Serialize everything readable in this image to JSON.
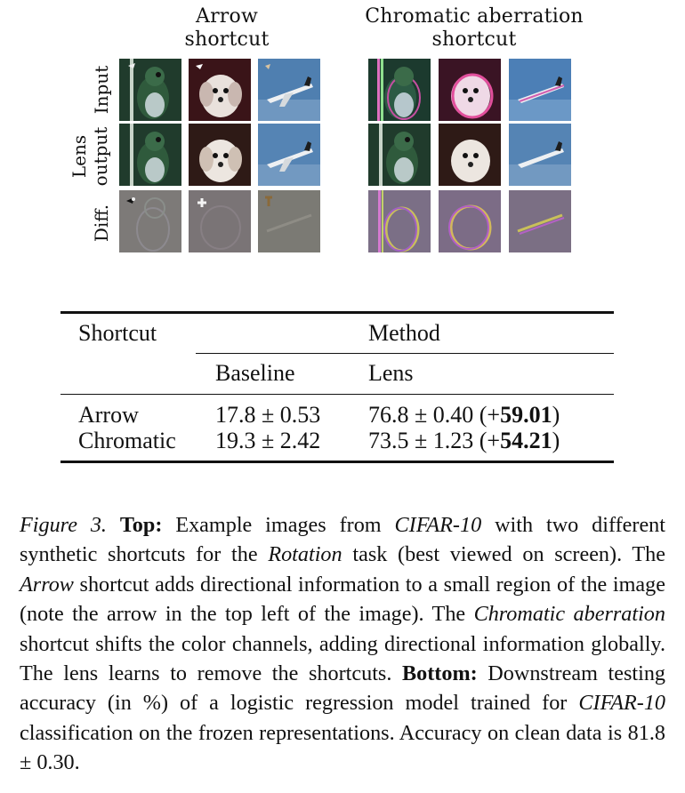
{
  "figure": {
    "panels": [
      {
        "title_line1": "Arrow",
        "title_line2": "shortcut"
      },
      {
        "title_line1": "Chromatic aberration",
        "title_line2": "shortcut"
      }
    ],
    "row_labels": {
      "input": "Input",
      "output_line1": "Lens",
      "output_line2": "output",
      "diff": "Diff."
    }
  },
  "table": {
    "header_shortcut": "Shortcut",
    "header_method": "Method",
    "sub_baseline": "Baseline",
    "sub_lens": "Lens",
    "rows": [
      {
        "shortcut": "Arrow",
        "baseline": "17.8 ± 0.53",
        "lens": "76.8 ± 0.40 (+",
        "gain": "59.01",
        "close": ")"
      },
      {
        "shortcut": "Chromatic",
        "baseline": "19.3 ± 2.42",
        "lens": "73.5 ± 1.23 (+",
        "gain": "54.21",
        "close": ")"
      }
    ]
  },
  "caption": {
    "figure_label": "Figure 3.",
    "top_label": "Top:",
    "t1": "Example images from",
    "cifar": "CIFAR-10",
    "t2": "with two different synthetic shortcuts for the",
    "rotation": "Rotation",
    "t3": "task (best viewed on screen). The",
    "arrow": "Arrow",
    "t4": "shortcut adds directional information to a small region of the image (note the arrow in the top left of the image). The",
    "chromatic": "Chromatic aberration",
    "t5": "shortcut shifts the color channels, adding directional information globally. The lens learns to remove the shortcuts.",
    "bottom_label": "Bottom:",
    "t6": "Downstream testing accuracy (in %) of a logistic regression model trained for",
    "cifar2": "CIFAR-10",
    "t7": "classification on the frozen representations. Accuracy on clean data is 81.8 ± 0.30."
  },
  "colors": {
    "rule": "#111111",
    "bird_green": "#2f5a3c",
    "dog_bg": "#3a1418",
    "sky": "#4f7fb0",
    "diff_gray": "#7d7a78"
  }
}
